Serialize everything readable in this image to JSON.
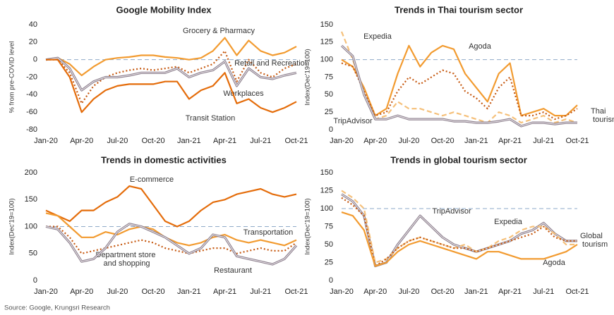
{
  "chart_data": [
    {
      "type": "line",
      "title": "Google Mobility Index",
      "y_label": "% from pre-COVID level",
      "categories": [
        "Jan-20",
        null,
        null,
        "Apr-20",
        null,
        null,
        "Jul-20",
        null,
        null,
        "Oct-20",
        null,
        null,
        "Jan-21",
        null,
        null,
        "Apr-21",
        null,
        null,
        "Jul-21",
        null,
        null,
        "Oct-21"
      ],
      "ylim": [
        -80,
        40
      ],
      "yticks": [
        -80,
        -60,
        -40,
        -20,
        0,
        20,
        40
      ],
      "reference_line": 0,
      "series": [
        {
          "name": "Grocery & Pharmacy",
          "color": "#f29b30",
          "style": "solid",
          "values": [
            0,
            2,
            -5,
            -18,
            -8,
            0,
            2,
            3,
            5,
            5,
            3,
            2,
            0,
            2,
            10,
            25,
            5,
            22,
            10,
            5,
            8,
            15
          ]
        },
        {
          "name": "Retail and Recreation",
          "color": "#c65911",
          "style": "dotted",
          "values": [
            0,
            0,
            -15,
            -50,
            -30,
            -20,
            -15,
            -12,
            -10,
            -12,
            -10,
            -8,
            -15,
            -10,
            -5,
            10,
            -25,
            0,
            -15,
            -20,
            -10,
            -5
          ]
        },
        {
          "name": "Workplaces",
          "color": "#a89ca8",
          "style": "double",
          "values": [
            0,
            2,
            -10,
            -35,
            -25,
            -20,
            -20,
            -18,
            -15,
            -15,
            -15,
            -10,
            -20,
            -15,
            -12,
            -2,
            -30,
            -10,
            -20,
            -22,
            -18,
            -15
          ]
        },
        {
          "name": "Transit Station",
          "color": "#e46c0a",
          "style": "solid",
          "values": [
            0,
            0,
            -20,
            -60,
            -45,
            -35,
            -30,
            -28,
            -28,
            -28,
            -25,
            -25,
            -45,
            -35,
            -30,
            -15,
            -50,
            -45,
            -55,
            -60,
            -55,
            -48
          ]
        }
      ]
    },
    {
      "type": "line",
      "title": "Trends in Thai tourism sector",
      "y_label": "Index(Dec'19=100)",
      "categories": [
        "Jan-20",
        null,
        null,
        "Apr-20",
        null,
        null,
        "Jul-20",
        null,
        null,
        "Oct-20",
        null,
        null,
        "Jan-21",
        null,
        null,
        "Apr-21",
        null,
        null,
        "Jul-21",
        null,
        null,
        "Oct-21"
      ],
      "ylim": [
        0,
        150
      ],
      "yticks": [
        0,
        25,
        50,
        75,
        100,
        125,
        150
      ],
      "reference_line": 100,
      "series": [
        {
          "name": "Expedia",
          "color": "#f5c07a",
          "style": "dashed",
          "values": [
            140,
            100,
            50,
            15,
            20,
            40,
            30,
            30,
            25,
            20,
            25,
            20,
            15,
            10,
            25,
            20,
            10,
            15,
            20,
            10,
            15,
            10
          ]
        },
        {
          "name": "Agoda",
          "color": "#f29b30",
          "style": "solid",
          "values": [
            100,
            90,
            60,
            20,
            30,
            80,
            120,
            90,
            110,
            120,
            115,
            80,
            60,
            40,
            80,
            95,
            20,
            25,
            30,
            20,
            20,
            35
          ]
        },
        {
          "name": "Thai tourism",
          "color": "#c65911",
          "style": "dotted",
          "values": [
            95,
            90,
            55,
            20,
            25,
            55,
            75,
            65,
            75,
            85,
            80,
            55,
            45,
            30,
            60,
            75,
            20,
            20,
            25,
            15,
            20,
            30
          ]
        },
        {
          "name": "TripAdvisor",
          "color": "#a89ca8",
          "style": "double",
          "values": [
            120,
            105,
            50,
            15,
            15,
            20,
            15,
            15,
            15,
            15,
            12,
            12,
            10,
            10,
            12,
            15,
            5,
            10,
            10,
            8,
            10,
            10
          ]
        }
      ]
    },
    {
      "type": "line",
      "title": "Trends in domestic activities",
      "y_label": "Index(Dec'19=100)",
      "categories": [
        "Jan-20",
        null,
        null,
        "Apr-20",
        null,
        null,
        "Jul-20",
        null,
        null,
        "Oct-20",
        null,
        null,
        "Jan-21",
        null,
        null,
        "Apr-21",
        null,
        null,
        "Jul-21",
        null,
        null,
        "Oct-21"
      ],
      "ylim": [
        0,
        200
      ],
      "yticks": [
        0,
        50,
        100,
        150,
        200
      ],
      "reference_line": 100,
      "series": [
        {
          "name": "E-commerce",
          "color": "#e46c0a",
          "style": "solid",
          "values": [
            130,
            120,
            110,
            130,
            130,
            145,
            155,
            175,
            170,
            140,
            110,
            100,
            110,
            130,
            145,
            150,
            160,
            165,
            170,
            160,
            155,
            160
          ]
        },
        {
          "name": "Transportation",
          "color": "#f29b30",
          "style": "solid",
          "values": [
            125,
            120,
            100,
            80,
            80,
            90,
            85,
            95,
            100,
            95,
            80,
            70,
            65,
            70,
            80,
            85,
            75,
            70,
            75,
            70,
            65,
            75
          ]
        },
        {
          "name": "Department store and shopping",
          "color": "#c65911",
          "style": "dotted",
          "values": [
            100,
            100,
            80,
            50,
            55,
            60,
            65,
            70,
            75,
            70,
            60,
            55,
            50,
            55,
            60,
            60,
            50,
            55,
            60,
            55,
            55,
            70
          ]
        },
        {
          "name": "Restaurant",
          "color": "#a89ca8",
          "style": "double",
          "values": [
            100,
            95,
            70,
            35,
            40,
            60,
            90,
            105,
            100,
            90,
            80,
            65,
            50,
            60,
            85,
            80,
            45,
            40,
            35,
            30,
            40,
            65
          ]
        }
      ]
    },
    {
      "type": "line",
      "title": "Trends in global tourism sector",
      "y_label": "Index(Dec'19=100)",
      "categories": [
        "Jan-20",
        null,
        null,
        "Apr-20",
        null,
        null,
        "Jul-20",
        null,
        null,
        "Oct-20",
        null,
        null,
        "Jan-21",
        null,
        null,
        "Apr-21",
        null,
        null,
        "Jul-21",
        null,
        null,
        "Oct-21"
      ],
      "ylim": [
        0,
        150
      ],
      "yticks": [
        0,
        25,
        50,
        75,
        100,
        125,
        150
      ],
      "reference_line": 100,
      "series": [
        {
          "name": "TripAdvisor",
          "color": "#a89ca8",
          "style": "double",
          "values": [
            120,
            110,
            90,
            20,
            25,
            50,
            70,
            90,
            75,
            60,
            50,
            45,
            40,
            45,
            50,
            55,
            65,
            70,
            80,
            65,
            55,
            55
          ]
        },
        {
          "name": "Expedia",
          "color": "#f5c07a",
          "style": "dashed",
          "values": [
            125,
            115,
            100,
            25,
            30,
            45,
            55,
            60,
            55,
            50,
            45,
            50,
            40,
            45,
            55,
            60,
            70,
            75,
            75,
            65,
            50,
            50
          ]
        },
        {
          "name": "Global tourism",
          "color": "#c65911",
          "style": "dotted",
          "values": [
            115,
            105,
            90,
            20,
            30,
            45,
            55,
            60,
            55,
            50,
            45,
            45,
            40,
            45,
            50,
            55,
            60,
            65,
            75,
            60,
            55,
            55
          ]
        },
        {
          "name": "Agoda",
          "color": "#f29b30",
          "style": "solid",
          "values": [
            95,
            90,
            70,
            20,
            25,
            40,
            50,
            55,
            50,
            45,
            40,
            35,
            30,
            40,
            40,
            35,
            30,
            30,
            30,
            35,
            40,
            50
          ]
        }
      ]
    }
  ],
  "source": "Source: Google, Krungsri Research"
}
